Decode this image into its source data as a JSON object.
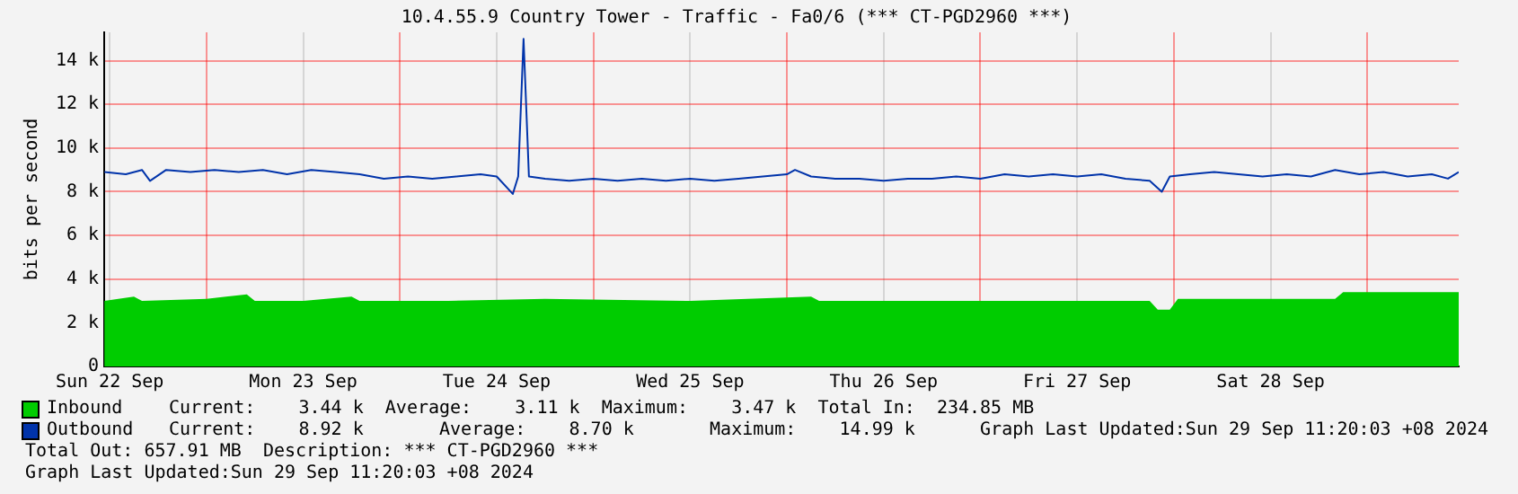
{
  "chart_data": {
    "type": "line",
    "title": "10.4.55.9 Country Tower - Traffic - Fa0/6 (*** CT-PGD2960 ***)",
    "ylabel": "bits per second",
    "xlim": [
      "2024-09-22T11:20",
      "2024-09-29T11:20"
    ],
    "xticks": [
      {
        "value": "2024-09-22T12:00",
        "label": "Sun 22 Sep"
      },
      {
        "value": "2024-09-23",
        "label": null
      },
      {
        "value": "2024-09-23T12:00",
        "label": "Mon 23 Sep"
      },
      {
        "value": "2024-09-24",
        "label": null
      },
      {
        "value": "2024-09-24T12:00",
        "label": "Tue 24 Sep"
      },
      {
        "value": "2024-09-25",
        "label": null
      },
      {
        "value": "2024-09-25T12:00",
        "label": "Wed 25 Sep"
      },
      {
        "value": "2024-09-26",
        "label": null
      },
      {
        "value": "2024-09-26T12:00",
        "label": "Thu 26 Sep"
      },
      {
        "value": "2024-09-27",
        "label": null
      },
      {
        "value": "2024-09-27T12:00",
        "label": "Fri 27 Sep"
      },
      {
        "value": "2024-09-28",
        "label": null
      },
      {
        "value": "2024-09-28T12:00",
        "label": "Sat 28 Sep"
      },
      {
        "value": "2024-09-29",
        "label": null
      }
    ],
    "ylim": [
      0,
      15300
    ],
    "yticks": [
      0,
      {
        "value": 2000,
        "label": "2 k"
      },
      {
        "value": 4000,
        "label": "4 k"
      },
      {
        "value": 6000,
        "label": "6 k"
      },
      {
        "value": 8000,
        "label": "8 k"
      },
      {
        "value": 10000,
        "label": "10 k"
      },
      {
        "value": 12000,
        "label": "12 k"
      },
      {
        "value": 14000,
        "label": "14 k"
      }
    ],
    "grid": true,
    "legend": "bottom",
    "series": [
      {
        "name": "Inbound",
        "type": "area",
        "color": "#00cc00",
        "x": [
          "2024-09-22T11:20",
          "2024-09-22T15:00",
          "2024-09-22T16:00",
          "2024-09-23",
          "2024-09-23T05:00",
          "2024-09-23T06:00",
          "2024-09-23T12:00",
          "2024-09-23T18:00",
          "2024-09-23T19:00",
          "2024-09-24T06:00",
          "2024-09-24T18:00",
          "2024-09-25T12:00",
          "2024-09-26T03:00",
          "2024-09-26T04:00",
          "2024-09-26T18:00",
          "2024-09-27T12:00",
          "2024-09-27T21:00",
          "2024-09-27T22:00",
          "2024-09-27T23:30",
          "2024-09-28T00:30",
          "2024-09-28T10:00",
          "2024-09-28T20:00",
          "2024-09-28T21:00",
          "2024-09-29T05:00",
          "2024-09-29T11:20"
        ],
        "values": [
          3000,
          3200,
          3000,
          3100,
          3300,
          3000,
          3000,
          3200,
          3000,
          3000,
          3100,
          3000,
          3200,
          3000,
          3000,
          3000,
          3000,
          2600,
          2600,
          3100,
          3100,
          3100,
          3400,
          3400,
          3400
        ]
      },
      {
        "name": "Outbound",
        "type": "line",
        "color": "#0033aa",
        "x": [
          "2024-09-22T11:20",
          "2024-09-22T14:00",
          "2024-09-22T16:00",
          "2024-09-22T17:00",
          "2024-09-22T19:00",
          "2024-09-22T22:00",
          "2024-09-23T01:00",
          "2024-09-23T04:00",
          "2024-09-23T07:00",
          "2024-09-23T10:00",
          "2024-09-23T13:00",
          "2024-09-23T16:00",
          "2024-09-23T19:00",
          "2024-09-23T22:00",
          "2024-09-24T01:00",
          "2024-09-24T04:00",
          "2024-09-24T07:00",
          "2024-09-24T10:00",
          "2024-09-24T12:00",
          "2024-09-24T14:00",
          "2024-09-24T14:40",
          "2024-09-24T15:20",
          "2024-09-24T16:00",
          "2024-09-24T18:00",
          "2024-09-24T21:00",
          "2024-09-25",
          "2024-09-25T03:00",
          "2024-09-25T06:00",
          "2024-09-25T09:00",
          "2024-09-25T12:00",
          "2024-09-25T15:00",
          "2024-09-25T18:00",
          "2024-09-25T21:00",
          "2024-09-26",
          "2024-09-26T01:00",
          "2024-09-26T03:00",
          "2024-09-26T06:00",
          "2024-09-26T09:00",
          "2024-09-26T12:00",
          "2024-09-26T15:00",
          "2024-09-26T18:00",
          "2024-09-26T21:00",
          "2024-09-27",
          "2024-09-27T03:00",
          "2024-09-27T06:00",
          "2024-09-27T09:00",
          "2024-09-27T12:00",
          "2024-09-27T15:00",
          "2024-09-27T18:00",
          "2024-09-27T21:00",
          "2024-09-27T22:30",
          "2024-09-27T23:30",
          "2024-09-28T02:00",
          "2024-09-28T05:00",
          "2024-09-28T08:00",
          "2024-09-28T11:00",
          "2024-09-28T14:00",
          "2024-09-28T17:00",
          "2024-09-28T20:00",
          "2024-09-28T23:00",
          "2024-09-29T02:00",
          "2024-09-29T05:00",
          "2024-09-29T08:00",
          "2024-09-29T10:00",
          "2024-09-29T11:20"
        ],
        "values": [
          8900,
          8800,
          9000,
          8500,
          9000,
          8900,
          9000,
          8900,
          9000,
          8800,
          9000,
          8900,
          8800,
          8600,
          8700,
          8600,
          8700,
          8800,
          8700,
          7900,
          8700,
          15000,
          8700,
          8600,
          8500,
          8600,
          8500,
          8600,
          8500,
          8600,
          8500,
          8600,
          8700,
          8800,
          9000,
          8700,
          8600,
          8600,
          8500,
          8600,
          8600,
          8700,
          8600,
          8800,
          8700,
          8800,
          8700,
          8800,
          8600,
          8500,
          8000,
          8700,
          8800,
          8900,
          8800,
          8700,
          8800,
          8700,
          9000,
          8800,
          8900,
          8700,
          8800,
          8600,
          8900
        ]
      }
    ],
    "annotations": [
      "Current:    3.44 k  Average:    3.11 k  Maximum:    3.47 k  Total In:  234.85 MB",
      "Current:    8.92 k       Average:    8.70 k       Maximum:    14.99 k      Graph Last Updated:Sun 29 Sep 11:20:03 +08 2024",
      "Total Out: 657.91 MB  Description: *** CT-PGD2960 ***",
      "Graph Last Updated:Sun 29 Sep 11:20:03 +08 2024"
    ]
  }
}
